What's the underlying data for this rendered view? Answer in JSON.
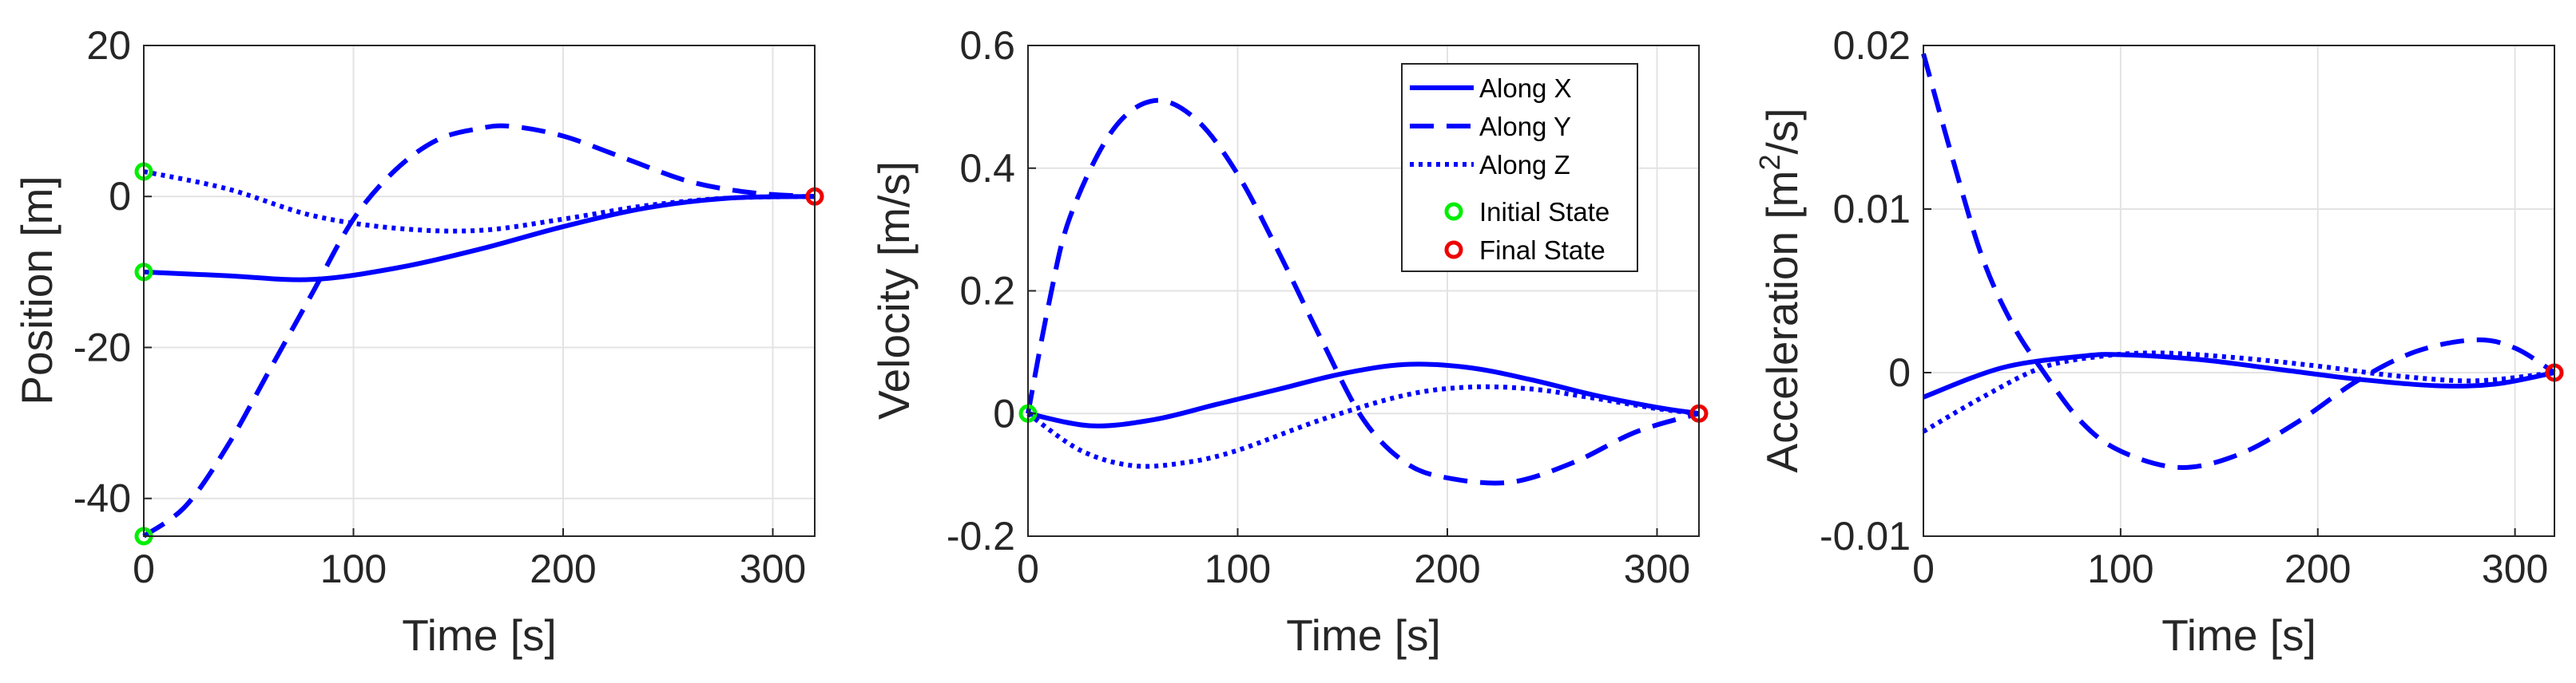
{
  "colors": {
    "series": "#0000ff",
    "initial": "#00ee00",
    "final": "#ee0000",
    "grid": "#e3e3e3",
    "axis": "#262626"
  },
  "chart_data": [
    {
      "type": "line",
      "title": "",
      "xlabel": "Time [s]",
      "ylabel": "Position [m]",
      "xlim": [
        0,
        320
      ],
      "ylim": [
        -45,
        20
      ],
      "xticks": [
        "0",
        "100",
        "200",
        "300"
      ],
      "yticks": [
        "-40",
        "-20",
        "0",
        "20"
      ],
      "series": [
        {
          "name": "Along X",
          "style": "solid",
          "x": [
            0,
            40,
            80,
            120,
            160,
            200,
            240,
            280,
            320
          ],
          "values": [
            -10,
            -10.5,
            -11,
            -9.5,
            -7,
            -4,
            -1.5,
            -0.2,
            0
          ]
        },
        {
          "name": "Along Y",
          "style": "dashed",
          "x": [
            0,
            20,
            40,
            60,
            80,
            100,
            120,
            140,
            160,
            175,
            200,
            230,
            260,
            290,
            320
          ],
          "values": [
            -45,
            -41,
            -33,
            -23,
            -13,
            -3,
            3.5,
            7.5,
            9,
            9.3,
            8,
            5,
            2,
            0.5,
            0
          ]
        },
        {
          "name": "Along Z",
          "style": "dotted",
          "x": [
            0,
            40,
            80,
            120,
            160,
            200,
            240,
            280,
            320
          ],
          "values": [
            3.3,
            1,
            -2.5,
            -4.2,
            -4.5,
            -3,
            -1.2,
            -0.2,
            0
          ]
        }
      ],
      "markers": [
        {
          "name": "Initial State",
          "x": 0,
          "values": [
            -10,
            -45,
            3.3
          ]
        },
        {
          "name": "Final State",
          "x": 320,
          "values": [
            0
          ]
        }
      ]
    },
    {
      "type": "line",
      "title": "",
      "xlabel": "Time [s]",
      "ylabel": "Velocity [m/s]",
      "xlim": [
        0,
        320
      ],
      "ylim": [
        -0.2,
        0.6
      ],
      "xticks": [
        "0",
        "100",
        "200",
        "300"
      ],
      "yticks": [
        "-0.2",
        "0",
        "0.2",
        "0.4",
        "0.6"
      ],
      "series": [
        {
          "name": "Along X",
          "style": "solid",
          "x": [
            0,
            30,
            60,
            90,
            120,
            150,
            180,
            210,
            240,
            270,
            300,
            320
          ],
          "values": [
            0,
            -0.02,
            -0.01,
            0.015,
            0.04,
            0.065,
            0.08,
            0.075,
            0.055,
            0.03,
            0.01,
            0
          ]
        },
        {
          "name": "Along Y",
          "style": "dashed",
          "x": [
            0,
            10,
            20,
            40,
            60,
            80,
            100,
            120,
            140,
            160,
            180,
            200,
            230,
            260,
            290,
            320
          ],
          "values": [
            0,
            0.18,
            0.32,
            0.46,
            0.51,
            0.48,
            0.39,
            0.26,
            0.12,
            -0.01,
            -0.08,
            -0.105,
            -0.112,
            -0.08,
            -0.03,
            0
          ]
        },
        {
          "name": "Along Z",
          "style": "dotted",
          "x": [
            0,
            25,
            50,
            75,
            100,
            140,
            180,
            210,
            240,
            270,
            300,
            320
          ],
          "values": [
            0,
            -0.06,
            -0.085,
            -0.08,
            -0.06,
            -0.01,
            0.03,
            0.043,
            0.04,
            0.025,
            0.008,
            0
          ]
        }
      ],
      "legend": {
        "placement": "top-right",
        "entries": [
          "Along X",
          "Along Y",
          "Along Z",
          "Initial State",
          "Final State"
        ]
      },
      "markers": [
        {
          "name": "Initial State",
          "x": 0,
          "values": [
            0
          ]
        },
        {
          "name": "Final State",
          "x": 320,
          "values": [
            0
          ]
        }
      ]
    },
    {
      "type": "line",
      "title": "",
      "xlabel": "Time [s]",
      "ylabel": "Acceleration [m",
      "ylabel_sup": "2",
      "ylabel_suffix": "/s]",
      "xlim": [
        0,
        320
      ],
      "ylim": [
        -0.01,
        0.02
      ],
      "xticks": [
        "0",
        "100",
        "200",
        "300"
      ],
      "yticks": [
        "-0.01",
        "0",
        "0.01",
        "0.02"
      ],
      "series": [
        {
          "name": "Along X",
          "style": "solid",
          "x": [
            0,
            40,
            80,
            100,
            140,
            180,
            220,
            260,
            290,
            320
          ],
          "values": [
            -0.0015,
            0.0003,
            0.001,
            0.0011,
            0.0008,
            0.0002,
            -0.0004,
            -0.0008,
            -0.0007,
            0
          ]
        },
        {
          "name": "Along Y",
          "style": "dashed",
          "x": [
            0,
            15,
            30,
            45,
            60,
            80,
            100,
            130,
            160,
            190,
            220,
            250,
            280,
            300,
            320
          ],
          "values": [
            0.0195,
            0.013,
            0.007,
            0.003,
            0.0002,
            -0.003,
            -0.0048,
            -0.0058,
            -0.005,
            -0.003,
            -0.0005,
            0.0013,
            0.002,
            0.0015,
            0
          ]
        },
        {
          "name": "Along Z",
          "style": "dotted",
          "x": [
            0,
            30,
            60,
            90,
            120,
            160,
            200,
            240,
            280,
            320
          ],
          "values": [
            -0.0036,
            -0.0015,
            0.0003,
            0.001,
            0.0012,
            0.0009,
            0.0004,
            -0.0002,
            -0.0005,
            0
          ]
        }
      ],
      "markers": [
        {
          "name": "Final State",
          "x": 320,
          "values": [
            0
          ]
        }
      ]
    }
  ]
}
